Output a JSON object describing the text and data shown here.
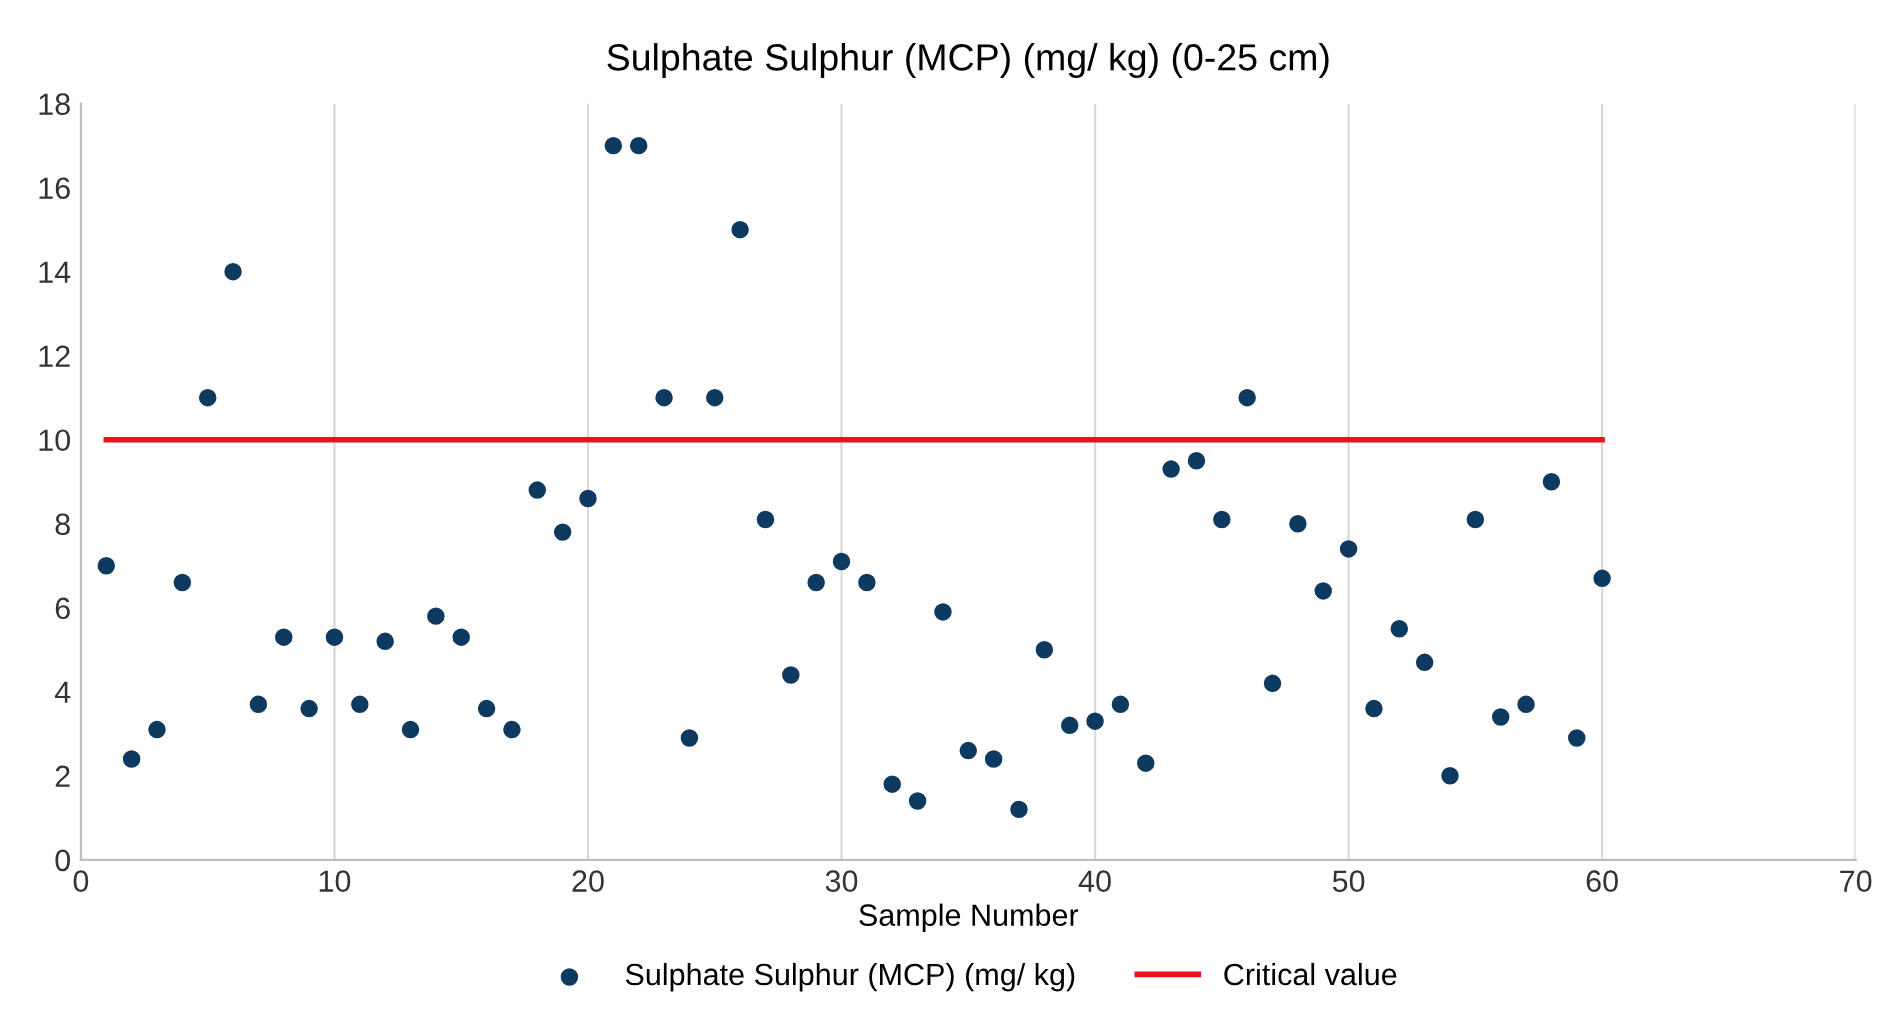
{
  "chart_data": {
    "type": "scatter",
    "title": "Sulphate Sulphur (MCP) (mg/ kg) (0-25 cm)",
    "xlabel": "Sample Number",
    "series": [
      {
        "name": "Sulphate Sulphur (MCP) (mg/ kg)",
        "color": "#0e3a60",
        "marker": "circle",
        "x": [
          1,
          2,
          3,
          4,
          5,
          6,
          7,
          8,
          9,
          10,
          11,
          12,
          13,
          14,
          15,
          16,
          17,
          18,
          19,
          20,
          21,
          22,
          23,
          24,
          25,
          26,
          27,
          28,
          29,
          30,
          31,
          32,
          33,
          34,
          35,
          36,
          37,
          38,
          39,
          40,
          41,
          42,
          43,
          44,
          45,
          46,
          47,
          48,
          49,
          50,
          51,
          52,
          53,
          54,
          55,
          56,
          57,
          58,
          59,
          60
        ],
        "values": [
          7.0,
          2.4,
          3.1,
          6.6,
          11,
          14,
          3.7,
          5.3,
          3.6,
          5.3,
          3.7,
          5.2,
          3.1,
          5.8,
          5.3,
          3.6,
          3.1,
          8.8,
          7.8,
          8.6,
          17,
          17,
          11,
          2.9,
          11,
          15,
          8.1,
          4.4,
          6.6,
          7.1,
          6.6,
          1.8,
          1.4,
          5.9,
          2.6,
          2.4,
          1.2,
          5.0,
          3.2,
          3.3,
          3.7,
          2.3,
          9.3,
          9.5,
          8.1,
          11,
          4.2,
          8.0,
          6.4,
          7.4,
          3.6,
          5.5,
          4.7,
          2.0,
          8.1,
          3.4,
          3.7,
          9.0,
          2.9,
          6.7
        ]
      },
      {
        "name": "Critical value",
        "type": "line",
        "color": "#e8141c",
        "marker": "none",
        "line_style": "solid",
        "x": [
          1,
          60
        ],
        "values": [
          10,
          10
        ]
      }
    ],
    "xlim": [
      0,
      70
    ],
    "xticks": [
      0,
      10,
      20,
      30,
      40,
      50,
      60,
      70
    ],
    "ylim": [
      0,
      18
    ],
    "yticks": [
      0,
      2,
      4,
      6,
      8,
      10,
      12,
      14,
      16,
      18
    ],
    "grid": "x",
    "legend": "bottom"
  }
}
